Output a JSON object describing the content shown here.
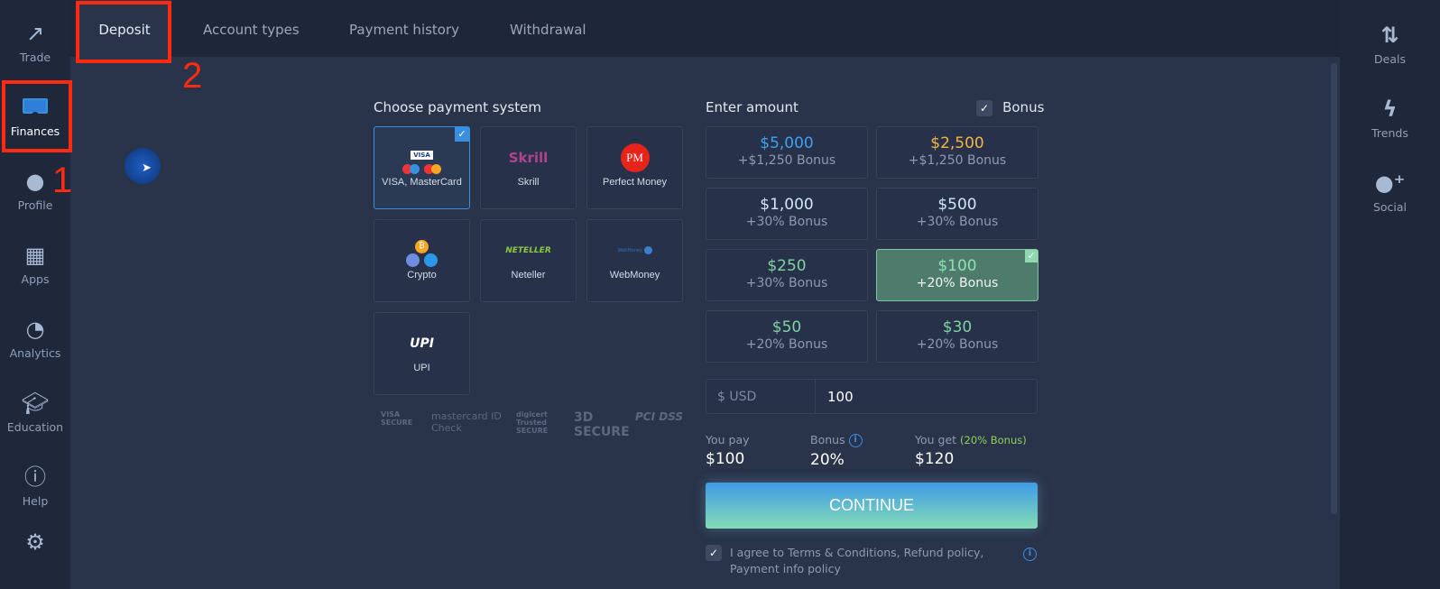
{
  "left_nav": [
    {
      "label": "Trade",
      "icon": "trend-up-icon"
    },
    {
      "label": "Finances",
      "icon": "wallet-icon",
      "active": true
    },
    {
      "label": "Profile",
      "icon": "user-icon"
    },
    {
      "label": "Apps",
      "icon": "grid-icon"
    },
    {
      "label": "Analytics",
      "icon": "pie-chart-icon"
    },
    {
      "label": "Education",
      "icon": "graduation-cap-icon"
    },
    {
      "label": "Help",
      "icon": "info-icon"
    },
    {
      "label": "",
      "icon": "gear-icon"
    }
  ],
  "right_nav": [
    {
      "label": "Deals",
      "icon": "arrows-up-down-icon"
    },
    {
      "label": "Trends",
      "icon": "lightning-icon"
    },
    {
      "label": "Social",
      "icon": "add-user-icon"
    }
  ],
  "tabs": [
    {
      "label": "Deposit",
      "active": true
    },
    {
      "label": "Account types"
    },
    {
      "label": "Payment history"
    },
    {
      "label": "Withdrawal"
    }
  ],
  "annotations": {
    "one": "1",
    "two": "2"
  },
  "payment": {
    "title": "Choose payment system",
    "methods": [
      {
        "label": "VISA, MasterCard",
        "selected": true,
        "logo": "VISA"
      },
      {
        "label": "Skrill",
        "logo": "Skrill"
      },
      {
        "label": "Perfect Money",
        "logo": "PM"
      },
      {
        "label": "Crypto",
        "logo": "₿"
      },
      {
        "label": "Neteller",
        "logo": "NETELLER"
      },
      {
        "label": "WebMoney",
        "logo": "WebMoney"
      },
      {
        "label": "UPI",
        "logo": "UPI"
      }
    ],
    "security_logos": [
      "VISA SECURE",
      "mastercard ID Check",
      "digicert Trusted SECURE",
      "3D SECURE",
      "PCI DSS"
    ]
  },
  "amount": {
    "title": "Enter amount",
    "bonus_label": "Bonus",
    "bonus_checked": true,
    "options": [
      {
        "value": "$5,000",
        "bonus": "+$1,250 Bonus",
        "color": "#3fa0f0"
      },
      {
        "value": "$2,500",
        "bonus": "+$1,250 Bonus",
        "color": "#f2b544"
      },
      {
        "value": "$1,000",
        "bonus": "+30% Bonus",
        "color": "#d3e6f7"
      },
      {
        "value": "$500",
        "bonus": "+30% Bonus",
        "color": "#d3e6f7"
      },
      {
        "value": "$250",
        "bonus": "+30% Bonus",
        "color": "#7fd3a2"
      },
      {
        "value": "$100",
        "bonus": "+20% Bonus",
        "color": "#8fe0b4",
        "selected": true
      },
      {
        "value": "$50",
        "bonus": "+20% Bonus",
        "color": "#7fd3a2"
      },
      {
        "value": "$30",
        "bonus": "+20% Bonus",
        "color": "#7fd3a2"
      }
    ],
    "currency": "$ USD",
    "input_value": "100"
  },
  "summary": {
    "pay_label": "You pay",
    "pay_value": "$100",
    "bonus_label": "Bonus",
    "bonus_value": "20%",
    "get_label": "You get",
    "get_note": "(20% Bonus)",
    "get_value": "$120"
  },
  "continue_label": "CONTINUE",
  "agree_text": "I agree to Terms & Conditions, Refund policy, Payment info policy",
  "agree_checked": true
}
